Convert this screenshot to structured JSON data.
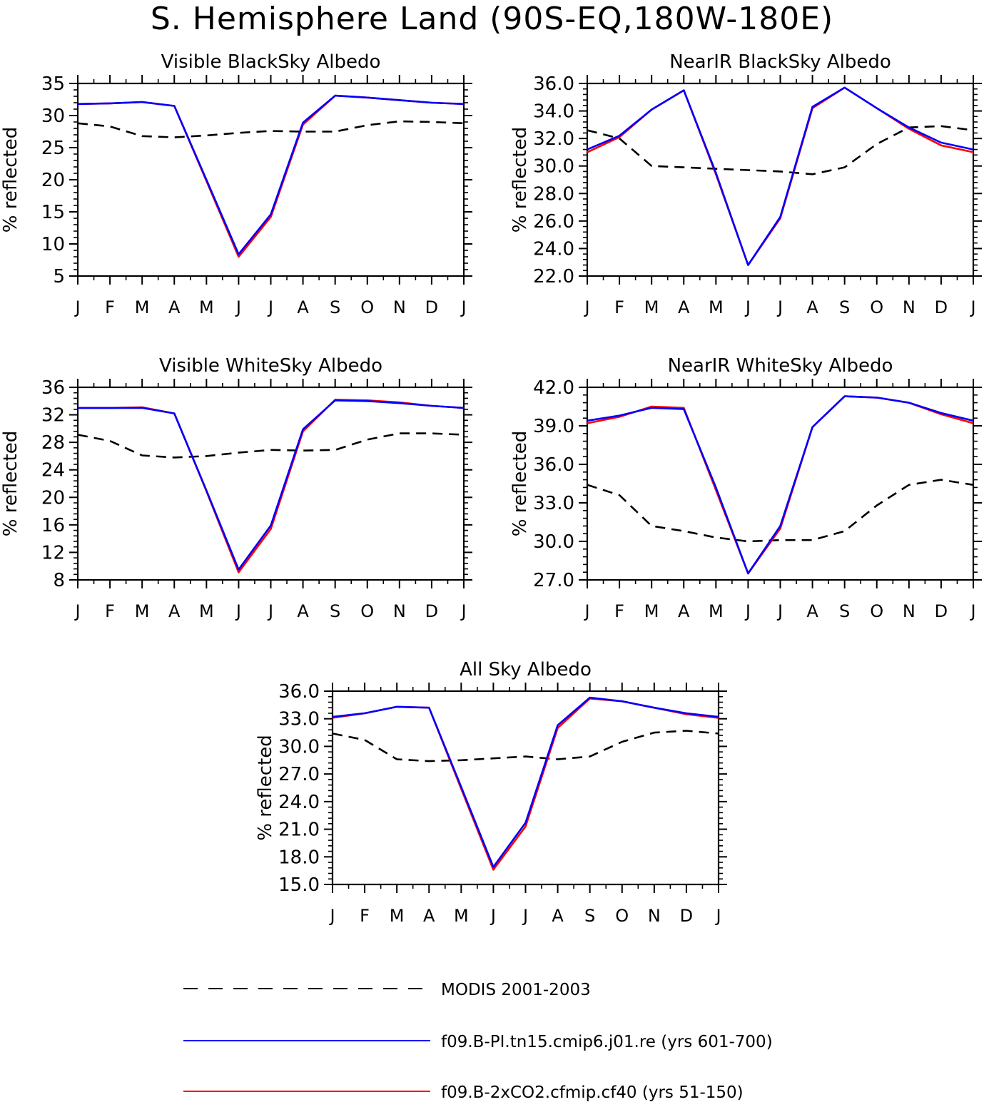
{
  "page_title": "S. Hemisphere Land (90S-EQ,180W-180E)",
  "colors": {
    "modis": "#000000",
    "pi": "#0000ff",
    "co2": "#ff0000"
  },
  "legend": {
    "modis": "MODIS 2001-2003",
    "pi": "f09.B-PI.tn15.cmip6.j01.re (yrs 601-700)",
    "co2": "f09.B-2xCO2.cfmip.cf40 (yrs 51-150)"
  },
  "chart_data": [
    {
      "type": "line",
      "title": "Visible BlackSky Albedo",
      "ylabel": "% reflected",
      "x": [
        "J",
        "F",
        "M",
        "A",
        "M",
        "J",
        "J",
        "A",
        "S",
        "O",
        "N",
        "D",
        "J"
      ],
      "ylim": [
        5,
        35
      ],
      "yticks": [
        "5",
        "10",
        "15",
        "20",
        "25",
        "30",
        "35"
      ],
      "series": [
        {
          "key": "modis",
          "name": "MODIS 2001-2003",
          "values": [
            28.8,
            28.3,
            26.8,
            26.6,
            26.9,
            27.3,
            27.6,
            27.5,
            27.5,
            28.5,
            29.1,
            29.0,
            28.8
          ]
        },
        {
          "key": "pi",
          "name": "f09.B-PI.tn15.cmip6.j01.re (yrs 601-700)",
          "values": [
            31.8,
            31.9,
            32.1,
            31.5,
            20.0,
            8.4,
            14.6,
            28.9,
            33.1,
            32.8,
            32.4,
            32.0,
            31.8
          ]
        },
        {
          "key": "co2",
          "name": "f09.B-2xCO2.cfmip.cf40 (yrs 51-150)",
          "values": [
            31.8,
            31.9,
            32.1,
            31.5,
            19.8,
            8.0,
            14.2,
            28.6,
            33.1,
            32.8,
            32.4,
            32.0,
            31.8
          ]
        }
      ]
    },
    {
      "type": "line",
      "title": "NearIR BlackSky Albedo",
      "ylabel": "% reflected",
      "x": [
        "J",
        "F",
        "M",
        "A",
        "M",
        "J",
        "J",
        "A",
        "S",
        "O",
        "N",
        "D",
        "J"
      ],
      "ylim": [
        22,
        36
      ],
      "yticks": [
        "22.0",
        "24.0",
        "26.0",
        "28.0",
        "30.0",
        "32.0",
        "34.0",
        "36.0"
      ],
      "series": [
        {
          "key": "modis",
          "name": "MODIS 2001-2003",
          "values": [
            32.6,
            32.0,
            30.0,
            29.9,
            29.8,
            29.7,
            29.6,
            29.4,
            29.9,
            31.6,
            32.8,
            32.9,
            32.6
          ]
        },
        {
          "key": "pi",
          "name": "f09.B-PI.tn15.cmip6.j01.re (yrs 601-700)",
          "values": [
            31.2,
            32.2,
            34.1,
            35.5,
            29.5,
            22.8,
            26.3,
            34.3,
            35.7,
            34.2,
            32.8,
            31.7,
            31.2
          ]
        },
        {
          "key": "co2",
          "name": "f09.B-2xCO2.cfmip.cf40 (yrs 51-150)",
          "values": [
            31.0,
            32.1,
            34.1,
            35.5,
            29.4,
            22.8,
            26.2,
            34.2,
            35.7,
            34.2,
            32.7,
            31.5,
            31.0
          ]
        }
      ]
    },
    {
      "type": "line",
      "title": "Visible WhiteSky Albedo",
      "ylabel": "% reflected",
      "x": [
        "J",
        "F",
        "M",
        "A",
        "M",
        "J",
        "J",
        "A",
        "S",
        "O",
        "N",
        "D",
        "J"
      ],
      "ylim": [
        8,
        36
      ],
      "yticks": [
        "8",
        "12",
        "16",
        "20",
        "24",
        "28",
        "32",
        "36"
      ],
      "series": [
        {
          "key": "modis",
          "name": "MODIS 2001-2003",
          "values": [
            29.1,
            28.2,
            26.1,
            25.8,
            26.0,
            26.5,
            26.9,
            26.8,
            26.9,
            28.4,
            29.3,
            29.3,
            29.1
          ]
        },
        {
          "key": "pi",
          "name": "f09.B-PI.tn15.cmip6.j01.re (yrs 601-700)",
          "values": [
            33.0,
            33.0,
            33.0,
            32.2,
            21.0,
            9.5,
            15.9,
            29.9,
            34.1,
            34.0,
            33.7,
            33.3,
            33.0
          ]
        },
        {
          "key": "co2",
          "name": "f09.B-2xCO2.cfmip.cf40 (yrs 51-150)",
          "values": [
            33.0,
            33.0,
            33.1,
            32.2,
            20.9,
            9.1,
            15.4,
            29.6,
            34.2,
            34.1,
            33.8,
            33.3,
            33.0
          ]
        }
      ]
    },
    {
      "type": "line",
      "title": "NearIR WhiteSky Albedo",
      "ylabel": "% reflected",
      "x": [
        "J",
        "F",
        "M",
        "A",
        "M",
        "J",
        "J",
        "A",
        "S",
        "O",
        "N",
        "D",
        "J"
      ],
      "ylim": [
        27,
        42
      ],
      "yticks": [
        "27.0",
        "30.0",
        "33.0",
        "36.0",
        "39.0",
        "42.0"
      ],
      "series": [
        {
          "key": "modis",
          "name": "MODIS 2001-2003",
          "values": [
            34.4,
            33.6,
            31.2,
            30.8,
            30.3,
            30.0,
            30.1,
            30.1,
            30.8,
            32.8,
            34.4,
            34.8,
            34.4
          ]
        },
        {
          "key": "pi",
          "name": "f09.B-PI.tn15.cmip6.j01.re (yrs 601-700)",
          "values": [
            39.4,
            39.8,
            40.4,
            40.3,
            34.2,
            27.5,
            31.2,
            38.9,
            41.3,
            41.2,
            40.8,
            40.0,
            39.4
          ]
        },
        {
          "key": "co2",
          "name": "f09.B-2xCO2.cfmip.cf40 (yrs 51-150)",
          "values": [
            39.2,
            39.7,
            40.5,
            40.4,
            34.0,
            27.5,
            31.0,
            38.9,
            41.3,
            41.2,
            40.8,
            39.9,
            39.2
          ]
        }
      ]
    },
    {
      "type": "line",
      "title": "All Sky Albedo",
      "ylabel": "% reflected",
      "x": [
        "J",
        "F",
        "M",
        "A",
        "M",
        "J",
        "J",
        "A",
        "S",
        "O",
        "N",
        "D",
        "J"
      ],
      "ylim": [
        15,
        36
      ],
      "yticks": [
        "15.0",
        "18.0",
        "21.0",
        "24.0",
        "27.0",
        "30.0",
        "33.0",
        "36.0"
      ],
      "series": [
        {
          "key": "modis",
          "name": "MODIS 2001-2003",
          "values": [
            31.4,
            30.7,
            28.6,
            28.4,
            28.5,
            28.7,
            28.9,
            28.6,
            28.9,
            30.5,
            31.5,
            31.7,
            31.4
          ]
        },
        {
          "key": "pi",
          "name": "f09.B-PI.tn15.cmip6.j01.re (yrs 601-700)",
          "values": [
            33.2,
            33.6,
            34.3,
            34.2,
            25.6,
            16.9,
            21.7,
            32.3,
            35.3,
            34.9,
            34.2,
            33.6,
            33.2
          ]
        },
        {
          "key": "co2",
          "name": "f09.B-2xCO2.cfmip.cf40 (yrs 51-150)",
          "values": [
            33.1,
            33.6,
            34.3,
            34.2,
            25.4,
            16.6,
            21.3,
            32.0,
            35.2,
            34.9,
            34.2,
            33.5,
            33.1
          ]
        }
      ]
    }
  ]
}
